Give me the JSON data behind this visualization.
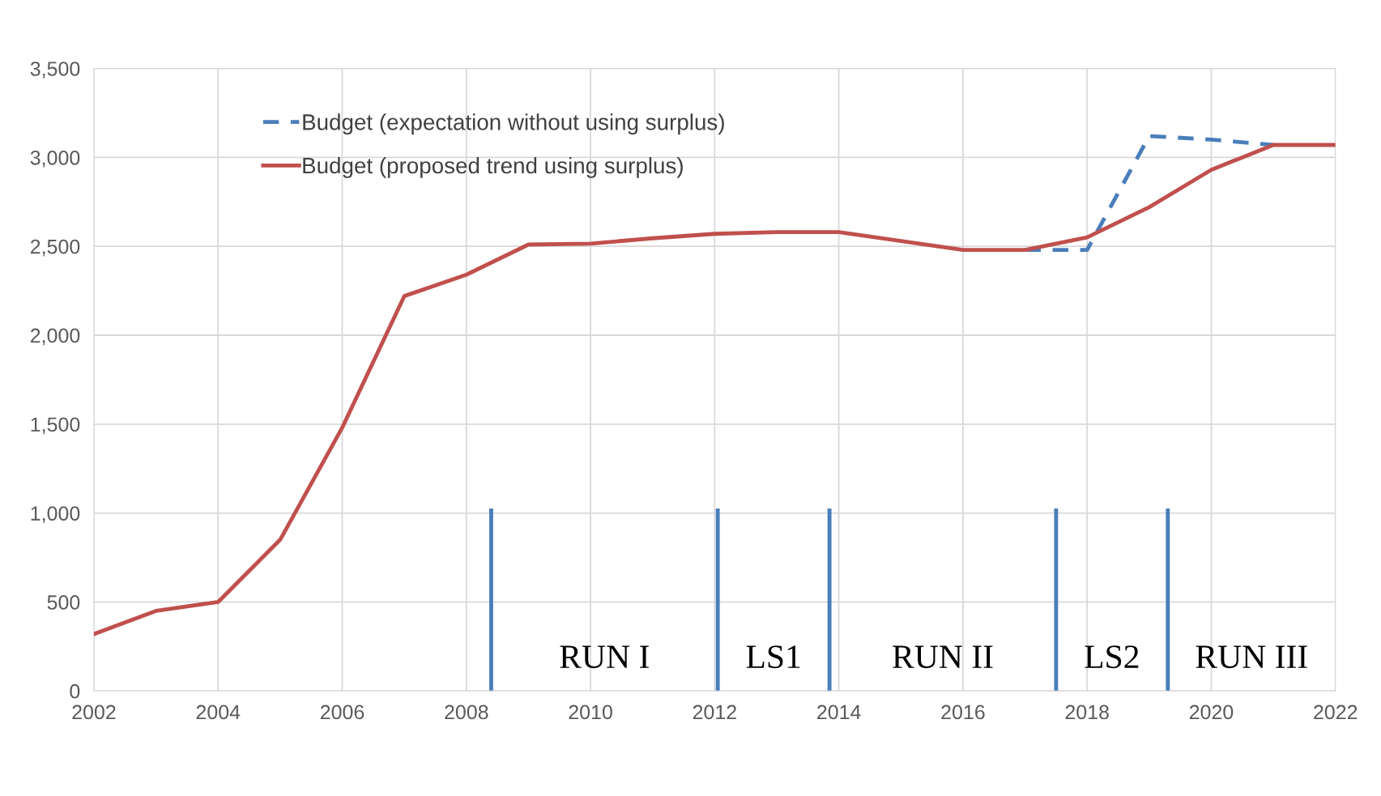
{
  "chart_data": {
    "type": "line",
    "x": [
      2002,
      2003,
      2004,
      2005,
      2006,
      2007,
      2008,
      2009,
      2010,
      2011,
      2012,
      2013,
      2014,
      2015,
      2016,
      2017,
      2018,
      2019,
      2020,
      2021,
      2022
    ],
    "series": [
      {
        "name": "Budget (expectation without using surplus)",
        "color": "#4a7ebb",
        "line_style": "dashed",
        "x": [
          2017,
          2018,
          2019,
          2020,
          2021
        ],
        "values": [
          2480,
          2480,
          3120,
          3100,
          3070
        ]
      },
      {
        "name": "Budget (proposed trend using surplus)",
        "color": "#c0504d",
        "line_style": "solid",
        "values": [
          320,
          450,
          500,
          850,
          1480,
          2220,
          2340,
          2510,
          2515,
          2545,
          2570,
          2580,
          2580,
          2530,
          2480,
          2480,
          2550,
          2720,
          2930,
          3070,
          3070
        ]
      }
    ],
    "xlim": [
      2002,
      2022
    ],
    "xticks": [
      2002,
      2004,
      2006,
      2008,
      2010,
      2012,
      2014,
      2016,
      2018,
      2020,
      2022
    ],
    "ylim": [
      0,
      3500
    ],
    "yticks": [
      {
        "value": 0,
        "label": "0"
      },
      {
        "value": 500,
        "label": "500"
      },
      {
        "value": 1000,
        "label": "1,000"
      },
      {
        "value": 1500,
        "label": "1,500"
      },
      {
        "value": 2000,
        "label": "2,000"
      },
      {
        "value": 2500,
        "label": "2,500"
      },
      {
        "value": 3000,
        "label": "3,000"
      },
      {
        "value": 3500,
        "label": "3,500"
      }
    ],
    "grid": true,
    "legend": "top left",
    "marker": "none",
    "ref_lines": [
      {
        "axis": "x",
        "value": 2008.4,
        "color": "#4a7ebb"
      },
      {
        "axis": "x",
        "value": 2012.05,
        "color": "#4a7ebb"
      },
      {
        "axis": "x",
        "value": 2013.85,
        "color": "#4a7ebb"
      },
      {
        "axis": "x",
        "value": 2017.5,
        "color": "#4a7ebb"
      },
      {
        "axis": "x",
        "value": 2019.3,
        "color": "#4a7ebb"
      }
    ],
    "annotations": [
      "RUN I",
      "LS1",
      "RUN II",
      "LS2",
      "RUN III"
    ]
  }
}
